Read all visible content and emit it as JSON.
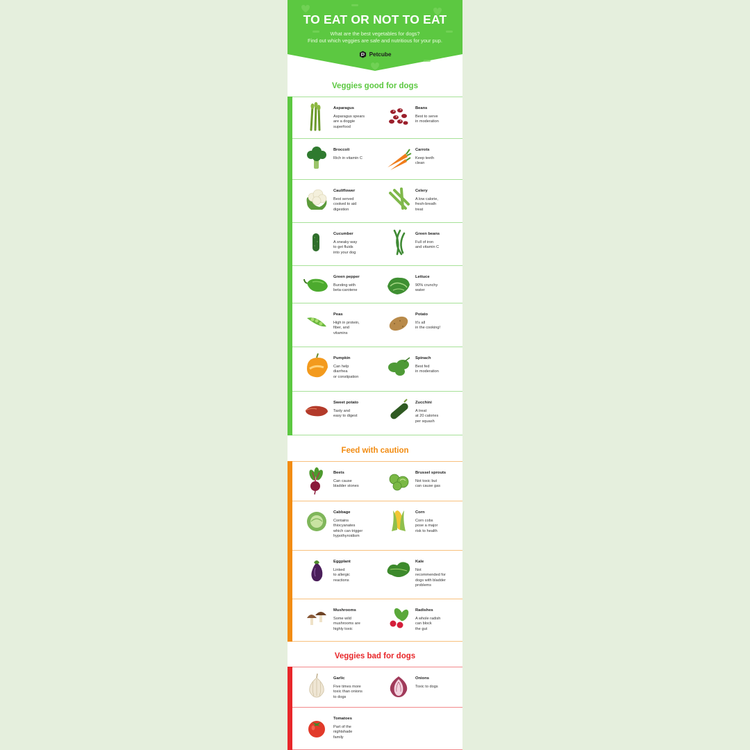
{
  "header": {
    "title": "TO EAT OR NOT TO EAT",
    "subtitle_line1": "What are the best vegetables for dogs?",
    "subtitle_line2": "Find out which veggies are safe and nutritious for your pup.",
    "brand": "Petcube"
  },
  "colors": {
    "green": "#5cc841",
    "orange": "#f28c12",
    "red": "#e8272a",
    "background": "#e5efdd"
  },
  "sections": [
    {
      "title": "Veggies good for dogs",
      "items": [
        {
          "name": "Asparagus",
          "desc": "Asparagus spears\nare a doggie\nsuperfood",
          "icon": "asparagus-icon"
        },
        {
          "name": "Beans",
          "desc": "Best to serve\nin moderation",
          "icon": "beans-icon"
        },
        {
          "name": "Broccoli",
          "desc": "Rich in vitamin C",
          "icon": "broccoli-icon"
        },
        {
          "name": "Carrots",
          "desc": "Keep teeth\nclean",
          "icon": "carrots-icon"
        },
        {
          "name": "Cauliflower",
          "desc": "Best served\ncooked to aid\ndigestion",
          "icon": "cauliflower-icon"
        },
        {
          "name": "Celery",
          "desc": "A low calorie,\nfresh-breath\ntreat",
          "icon": "celery-icon"
        },
        {
          "name": "Cucumber",
          "desc": "A sneaky way\nto get fluids\ninto your dog",
          "icon": "cucumber-icon"
        },
        {
          "name": "Green beans",
          "desc": "Full of iron\nand vitamin C",
          "icon": "green-beans-icon"
        },
        {
          "name": "Green pepper",
          "desc": "Bursting with\nbeta-carotene",
          "icon": "green-pepper-icon"
        },
        {
          "name": "Lettuce",
          "desc": "90% crunchy\nwater",
          "icon": "lettuce-icon"
        },
        {
          "name": "Peas",
          "desc": "High in protein,\nfiber, and\nvitamins",
          "icon": "peas-icon"
        },
        {
          "name": "Potato",
          "desc": "It's all\nin the cooking!",
          "icon": "potato-icon"
        },
        {
          "name": "Pumpkin",
          "desc": "Can help\ndiarrhea\nor constipation",
          "icon": "pumpkin-icon"
        },
        {
          "name": "Spinach",
          "desc": "Best fed\nin moderation",
          "icon": "spinach-icon"
        },
        {
          "name": "Sweet potato",
          "desc": "Tasty and\neasy to digest",
          "icon": "sweet-potato-icon"
        },
        {
          "name": "Zucchini",
          "desc": "A treat\nat 20 calories\nper squash",
          "icon": "zucchini-icon"
        }
      ]
    },
    {
      "title": "Feed with caution",
      "items": [
        {
          "name": "Beets",
          "desc": "Can cause\nbladder stones",
          "icon": "beets-icon"
        },
        {
          "name": "Brussel sprouts",
          "desc": "Not toxic but\ncan cause gas",
          "icon": "brussel-sprouts-icon"
        },
        {
          "name": "Cabbage",
          "desc": "Contains\nthiocyanates\nwhich can trigger\nhypothyroidism",
          "icon": "cabbage-icon"
        },
        {
          "name": "Corn",
          "desc": "Corn cobs\npose a major\nrisk to health",
          "icon": "corn-icon"
        },
        {
          "name": "Eggplant",
          "desc": "Linked\nto allergic\nreactions",
          "icon": "eggplant-icon"
        },
        {
          "name": "Kale",
          "desc": "Not\nrecommended for\ndogs with bladder\nproblems",
          "icon": "kale-icon"
        },
        {
          "name": "Mushrooms",
          "desc": "Some wild\nmushrooms are\nhighly toxic",
          "icon": "mushrooms-icon"
        },
        {
          "name": "Radishes",
          "desc": "A whole radish\ncan block\nthe gut",
          "icon": "radishes-icon"
        }
      ]
    },
    {
      "title": "Veggies bad for dogs",
      "items": [
        {
          "name": "Garlic",
          "desc": "Five times more\ntoxic than onions\nto dogs",
          "icon": "garlic-icon"
        },
        {
          "name": "Onions",
          "desc": "Toxic to dogs",
          "icon": "onions-icon"
        },
        {
          "name": "Tomatoes",
          "desc": "Part of the\nnightshade\nfamily",
          "icon": "tomatoes-icon"
        }
      ]
    }
  ]
}
